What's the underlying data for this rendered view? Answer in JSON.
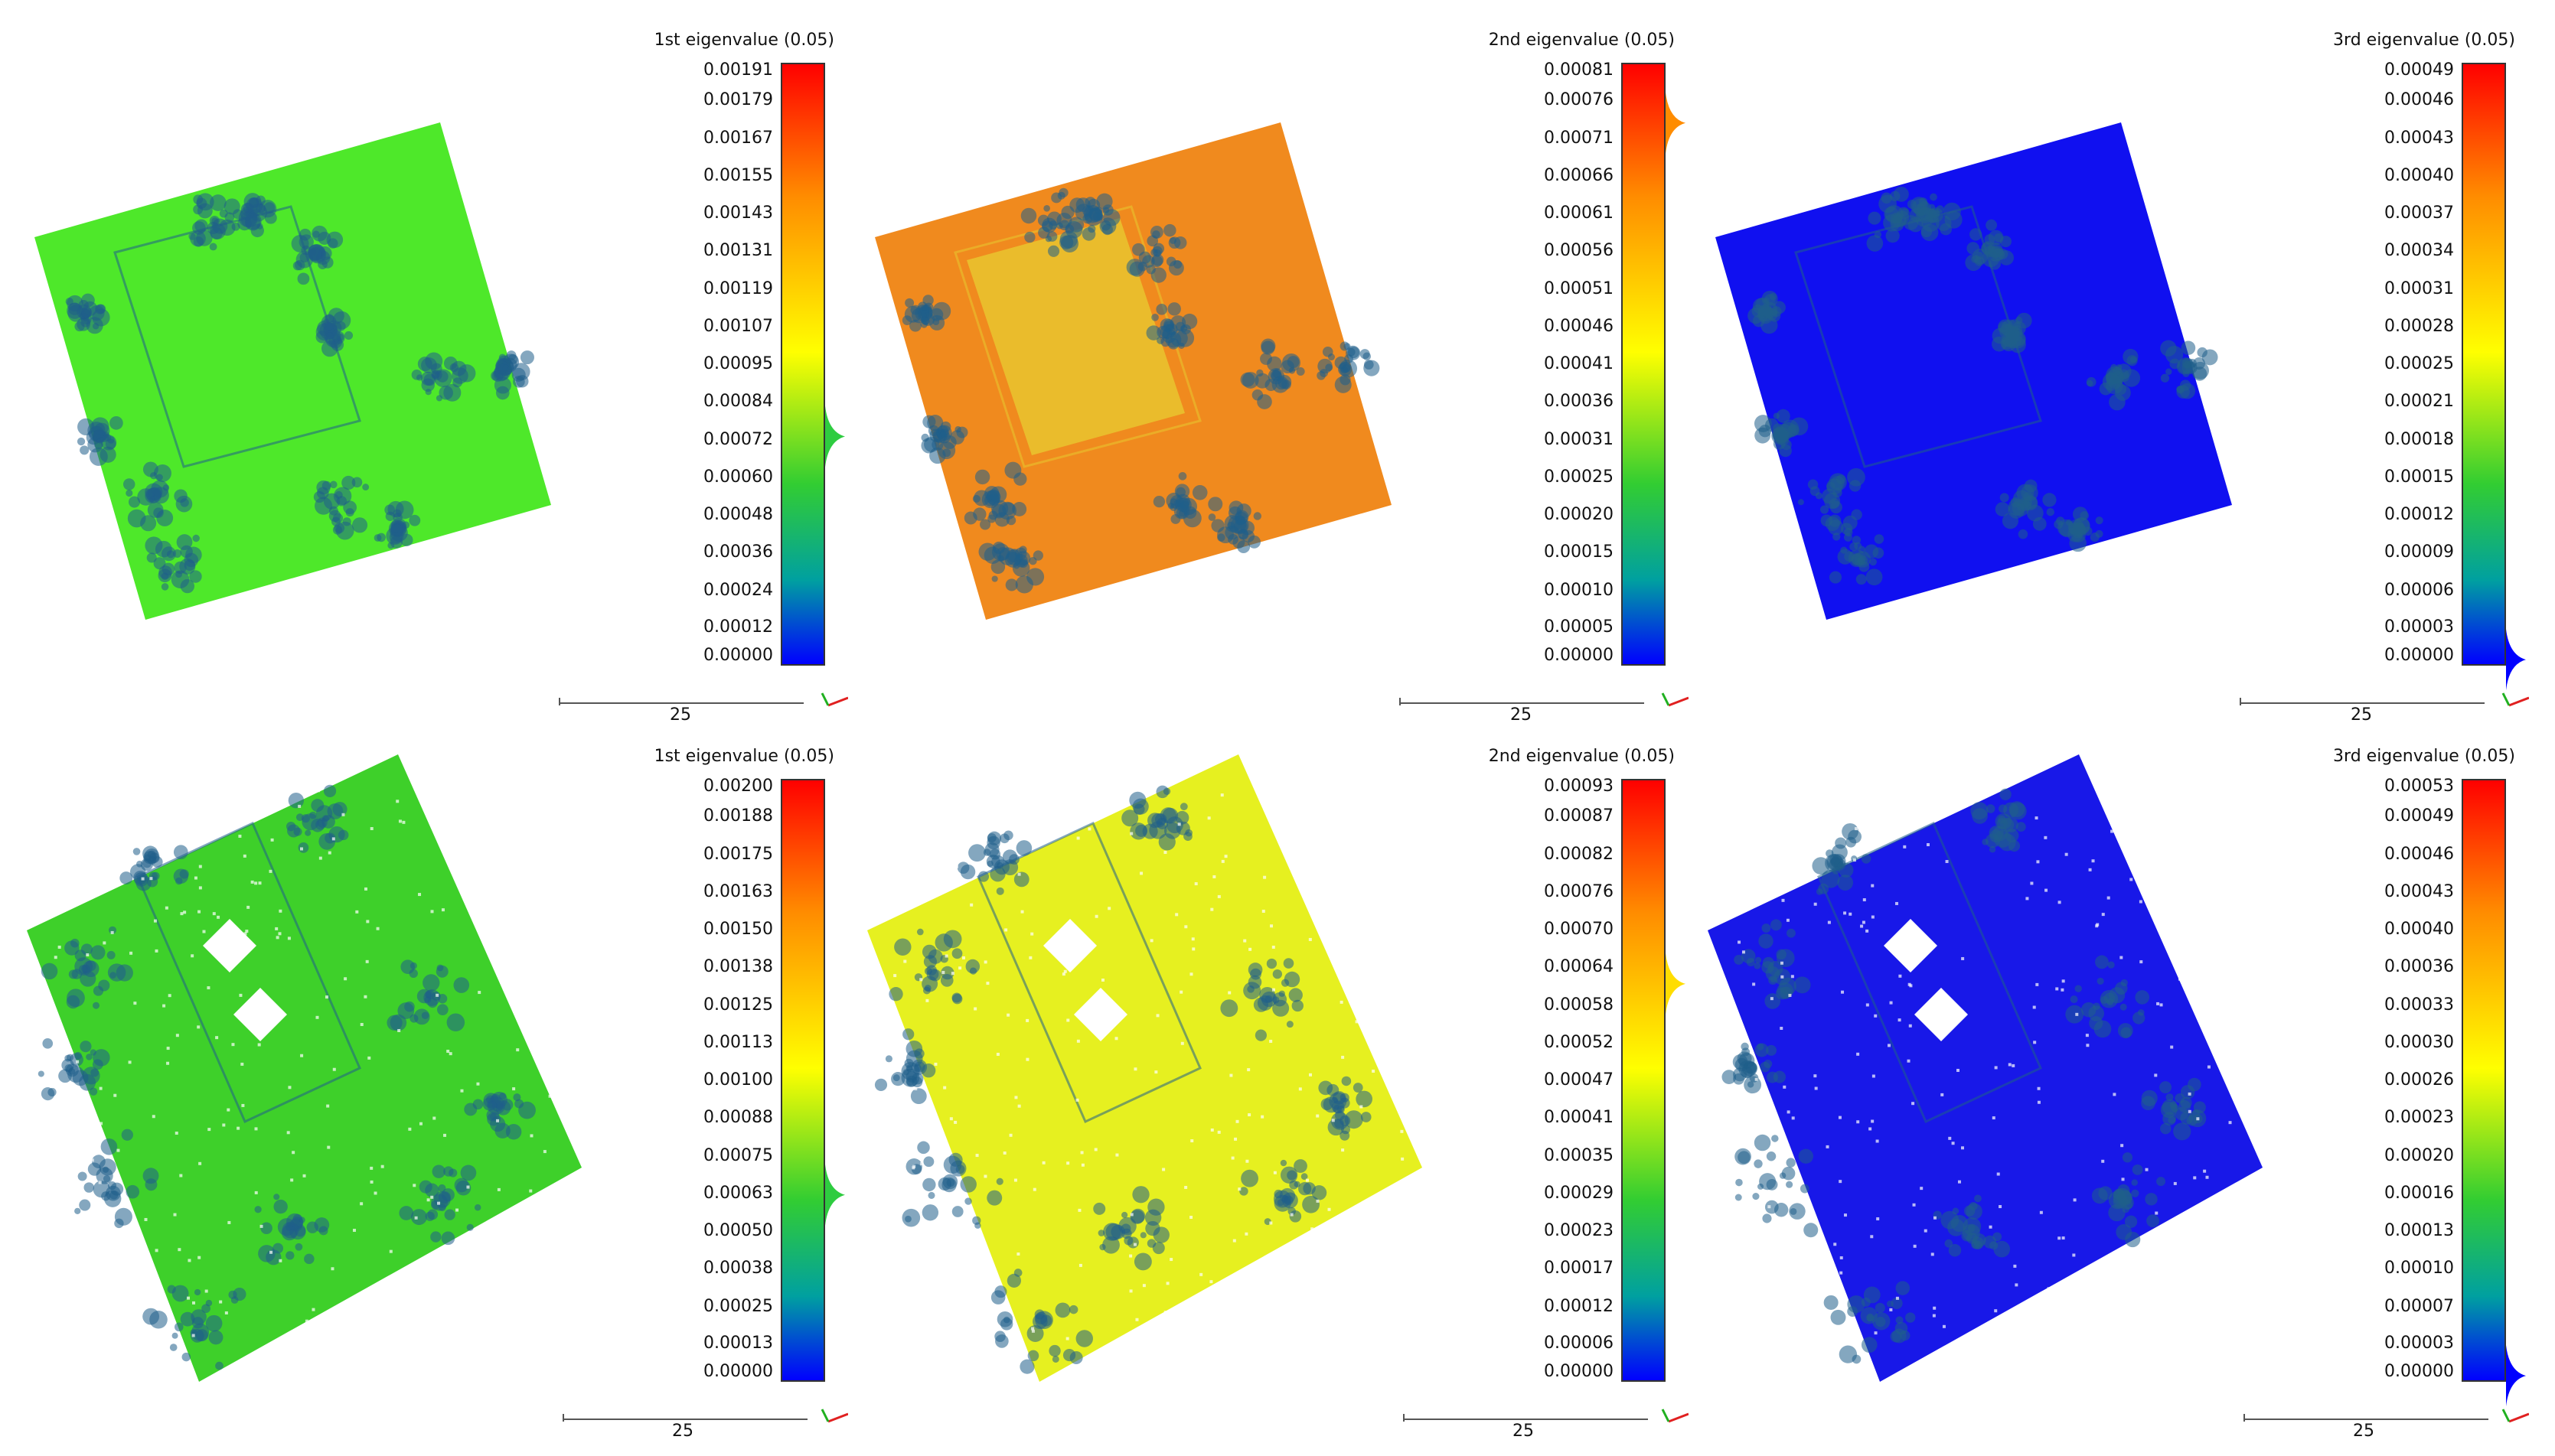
{
  "panels": [
    {
      "title": "1st eigenvalue (0.05)",
      "ticks": [
        "0.00191",
        "0.00179",
        "0.00167",
        "0.00155",
        "0.00143",
        "0.00131",
        "0.00119",
        "0.00107",
        "0.00095",
        "0.00084",
        "0.00072",
        "0.00060",
        "0.00048",
        "0.00036",
        "0.00024",
        "0.00012",
        "0.00000"
      ],
      "scale_label": "25",
      "cloud_color": "#4ee82a",
      "hist_level": 0.62,
      "hist_color": "#2ecc40"
    },
    {
      "title": "2nd eigenvalue (0.05)",
      "ticks": [
        "0.00081",
        "0.00076",
        "0.00071",
        "0.00066",
        "0.00061",
        "0.00056",
        "0.00051",
        "0.00046",
        "0.00041",
        "0.00036",
        "0.00031",
        "0.00025",
        "0.00020",
        "0.00015",
        "0.00010",
        "0.00005",
        "0.00000"
      ],
      "scale_label": "25",
      "cloud_color": "#f08a1e",
      "hist_level": 0.1,
      "hist_color": "#ff8c00"
    },
    {
      "title": "3rd eigenvalue (0.05)",
      "ticks": [
        "0.00049",
        "0.00046",
        "0.00043",
        "0.00040",
        "0.00037",
        "0.00034",
        "0.00031",
        "0.00028",
        "0.00025",
        "0.00021",
        "0.00018",
        "0.00015",
        "0.00012",
        "0.00009",
        "0.00006",
        "0.00003",
        "0.00000"
      ],
      "scale_label": "25",
      "cloud_color": "#1010f0",
      "hist_level": 0.99,
      "hist_color": "#0000ff"
    },
    {
      "title": "1st eigenvalue (0.05)",
      "ticks": [
        "0.00200",
        "0.00188",
        "0.00175",
        "0.00163",
        "0.00150",
        "0.00138",
        "0.00125",
        "0.00113",
        "0.00100",
        "0.00088",
        "0.00075",
        "0.00063",
        "0.00050",
        "0.00038",
        "0.00025",
        "0.00013",
        "0.00000"
      ],
      "scale_label": "25",
      "cloud_color": "#3ed02a",
      "hist_level": 0.69,
      "hist_color": "#2ecc40"
    },
    {
      "title": "2nd eigenvalue (0.05)",
      "ticks": [
        "0.00093",
        "0.00087",
        "0.00082",
        "0.00076",
        "0.00070",
        "0.00064",
        "0.00058",
        "0.00052",
        "0.00047",
        "0.00041",
        "0.00035",
        "0.00029",
        "0.00023",
        "0.00017",
        "0.00012",
        "0.00006",
        "0.00000"
      ],
      "scale_label": "25",
      "cloud_color": "#e6f020",
      "hist_level": 0.34,
      "hist_color": "#ffdd00"
    },
    {
      "title": "3rd eigenvalue (0.05)",
      "ticks": [
        "0.00053",
        "0.00049",
        "0.00046",
        "0.00043",
        "0.00040",
        "0.00036",
        "0.00033",
        "0.00030",
        "0.00026",
        "0.00023",
        "0.00020",
        "0.00016",
        "0.00013",
        "0.00010",
        "0.00007",
        "0.00003",
        "0.00000"
      ],
      "scale_label": "25",
      "cloud_color": "#1818e8",
      "hist_level": 0.99,
      "hist_color": "#0000ff"
    }
  ],
  "colors": {
    "vegetation": "#1f5f8a",
    "axis_x": "#e02020",
    "axis_y": "#20b020"
  }
}
